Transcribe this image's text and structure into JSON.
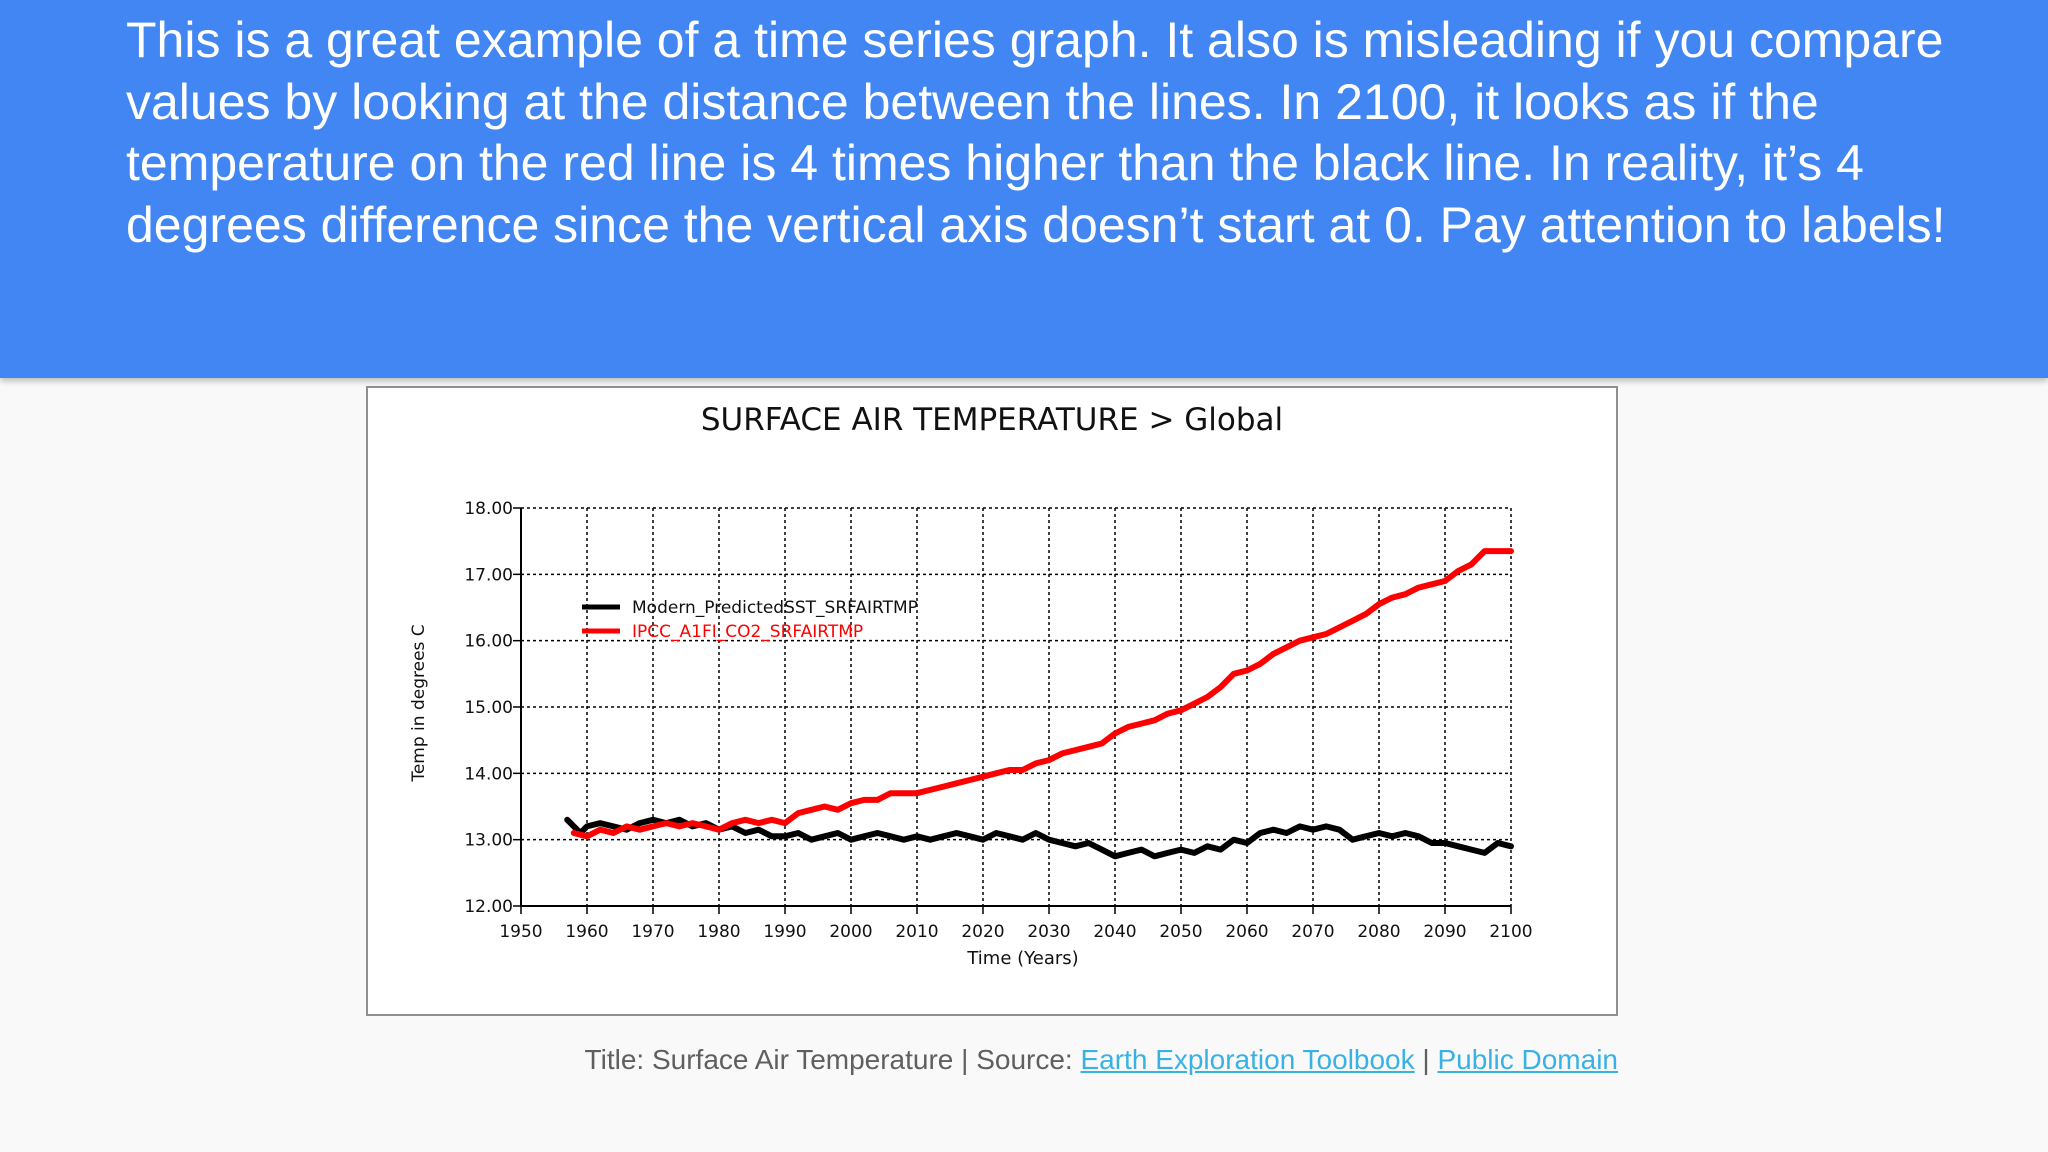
{
  "banner": {
    "text": "This is a great example of a time series graph. It also is misleading if you compare values by looking at the distance between the lines. In 2100, it looks as if the temperature on the red line is 4 times higher than the black line. In reality, it’s 4 degrees difference since the vertical axis doesn’t start at 0. Pay attention to labels!",
    "background": "#4286f3"
  },
  "caption": {
    "prefix": "Title: Surface Air Temperature | Source: ",
    "link1": "Earth Exploration Toolbook",
    "separator": " | ",
    "link2": "Public Domain",
    "link_color": "#39b2e3"
  },
  "chart_data": {
    "type": "line",
    "title": "SURFACE AIR TEMPERATURE > Global",
    "xlabel": "Time (Years)",
    "ylabel": "Temp in degrees C",
    "xlim": [
      1950,
      2100
    ],
    "ylim": [
      12.0,
      18.0
    ],
    "xticks": [
      "1950",
      "1960",
      "1970",
      "1980",
      "1990",
      "2000",
      "2010",
      "2020",
      "2030",
      "2040",
      "2050",
      "2060",
      "2070",
      "2080",
      "2090",
      "2100"
    ],
    "yticks": [
      "18.00",
      "17.00",
      "16.00",
      "15.00",
      "14.00",
      "13.00",
      "12.00"
    ],
    "grid": true,
    "legend_position": "top-left",
    "series": [
      {
        "name": "Modern_PredictedSST_SRFAIRTMP",
        "color": "#000000",
        "x": [
          1957,
          1958,
          1959,
          1960,
          1962,
          1964,
          1966,
          1968,
          1970,
          1972,
          1974,
          1976,
          1978,
          1980,
          1982,
          1984,
          1986,
          1988,
          1990,
          1992,
          1994,
          1996,
          1998,
          2000,
          2002,
          2004,
          2006,
          2008,
          2010,
          2012,
          2014,
          2016,
          2018,
          2020,
          2022,
          2024,
          2026,
          2028,
          2030,
          2032,
          2034,
          2036,
          2038,
          2040,
          2042,
          2044,
          2046,
          2048,
          2050,
          2052,
          2054,
          2056,
          2058,
          2060,
          2062,
          2064,
          2066,
          2068,
          2070,
          2072,
          2074,
          2076,
          2078,
          2080,
          2082,
          2084,
          2086,
          2088,
          2090,
          2092,
          2094,
          2096,
          2098,
          2100
        ],
        "values": [
          13.3,
          13.2,
          13.1,
          13.2,
          13.25,
          13.2,
          13.15,
          13.25,
          13.3,
          13.25,
          13.3,
          13.2,
          13.25,
          13.15,
          13.2,
          13.1,
          13.15,
          13.05,
          13.05,
          13.1,
          13.0,
          13.05,
          13.1,
          13.0,
          13.05,
          13.1,
          13.05,
          13.0,
          13.05,
          13.0,
          13.05,
          13.1,
          13.05,
          13.0,
          13.1,
          13.05,
          13.0,
          13.1,
          13.0,
          12.95,
          12.9,
          12.95,
          12.85,
          12.75,
          12.8,
          12.85,
          12.75,
          12.8,
          12.85,
          12.8,
          12.9,
          12.85,
          13.0,
          12.95,
          13.1,
          13.15,
          13.1,
          13.2,
          13.15,
          13.2,
          13.15,
          13.0,
          13.05,
          13.1,
          13.05,
          13.1,
          13.05,
          12.95,
          12.95,
          12.9,
          12.85,
          12.8,
          12.95,
          12.9
        ]
      },
      {
        "name": "IPCC_A1FI_CO2_SRFAIRTMP",
        "color": "#ff0000",
        "x": [
          1958,
          1960,
          1962,
          1964,
          1966,
          1968,
          1970,
          1972,
          1974,
          1976,
          1978,
          1980,
          1982,
          1984,
          1986,
          1988,
          1990,
          1992,
          1994,
          1996,
          1998,
          2000,
          2002,
          2004,
          2006,
          2008,
          2010,
          2012,
          2014,
          2016,
          2018,
          2020,
          2022,
          2024,
          2026,
          2028,
          2030,
          2032,
          2034,
          2036,
          2038,
          2040,
          2042,
          2044,
          2046,
          2048,
          2050,
          2052,
          2054,
          2056,
          2058,
          2060,
          2062,
          2064,
          2066,
          2068,
          2070,
          2072,
          2074,
          2076,
          2078,
          2080,
          2082,
          2084,
          2086,
          2088,
          2090,
          2092,
          2094,
          2096,
          2098,
          2100
        ],
        "values": [
          13.1,
          13.05,
          13.15,
          13.1,
          13.2,
          13.15,
          13.2,
          13.25,
          13.2,
          13.25,
          13.2,
          13.15,
          13.25,
          13.3,
          13.25,
          13.3,
          13.25,
          13.4,
          13.45,
          13.5,
          13.45,
          13.55,
          13.6,
          13.6,
          13.7,
          13.7,
          13.7,
          13.75,
          13.8,
          13.85,
          13.9,
          13.95,
          14.0,
          14.05,
          14.05,
          14.15,
          14.2,
          14.3,
          14.35,
          14.4,
          14.45,
          14.6,
          14.7,
          14.75,
          14.8,
          14.9,
          14.95,
          15.05,
          15.15,
          15.3,
          15.5,
          15.55,
          15.65,
          15.8,
          15.9,
          16.0,
          16.05,
          16.1,
          16.2,
          16.3,
          16.4,
          16.55,
          16.65,
          16.7,
          16.8,
          16.85,
          16.9,
          17.05,
          17.15,
          17.35,
          17.35,
          17.35
        ]
      }
    ]
  }
}
